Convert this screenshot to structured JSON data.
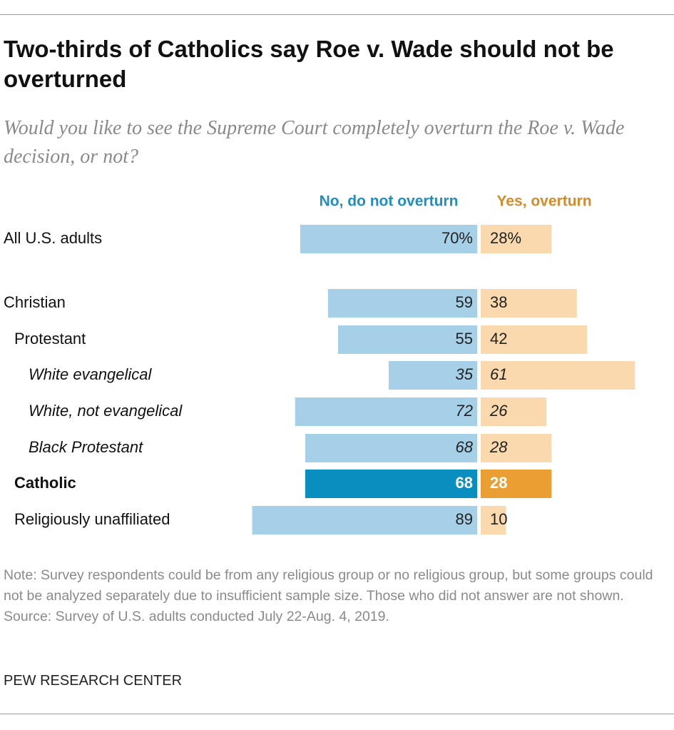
{
  "chart_data": {
    "type": "diverging_bar",
    "title": "Two-thirds of Catholics say Roe v. Wade should not be overturned",
    "subtitle": "Would you like to see the Supreme Court completely overturn the Roe v. Wade decision, or not?",
    "categories": [
      "All U.S. adults",
      "Christian",
      "Protestant",
      "White evangelical",
      "White, not evangelical",
      "Black Protestant",
      "Catholic",
      "Religiously unaffiliated"
    ],
    "series": [
      {
        "name": "No, do not overturn",
        "color": "#a6cfe8",
        "legend_color": "#1f8ec2",
        "colors": [
          "#a6cfe8",
          "#a6cfe8",
          "#a6cfe8",
          "#a6cfe8",
          "#a6cfe8",
          "#a6cfe8",
          "#0a8dbf",
          "#a6cfe8"
        ],
        "values": [
          70,
          59,
          55,
          35,
          72,
          68,
          68,
          89
        ],
        "value_labels": [
          "70%",
          "59",
          "55",
          "35",
          "72",
          "68",
          "68",
          "89"
        ]
      },
      {
        "name": "Yes, overturn",
        "color": "#f9d9ad",
        "legend_color": "#d38b2c",
        "colors": [
          "#f9d9ad",
          "#f9d9ad",
          "#f9d9ad",
          "#f9d9ad",
          "#f9d9ad",
          "#f9d9ad",
          "#eb9f32",
          "#f9d9ad"
        ],
        "values": [
          28,
          38,
          42,
          61,
          26,
          28,
          28,
          10
        ],
        "value_labels": [
          "28%",
          "38",
          "42",
          "61",
          "26",
          "28",
          "28",
          "10"
        ]
      }
    ],
    "note": "Note: Survey respondents could be from any religious group or no religious group, but some groups could not be analyzed separately due to insufficient sample size. Those who did not answer are not shown.",
    "source": "Source: Survey of U.S. adults conducted July 22-Aug. 4, 2019.",
    "credit": "PEW RESEARCH CENTER"
  }
}
